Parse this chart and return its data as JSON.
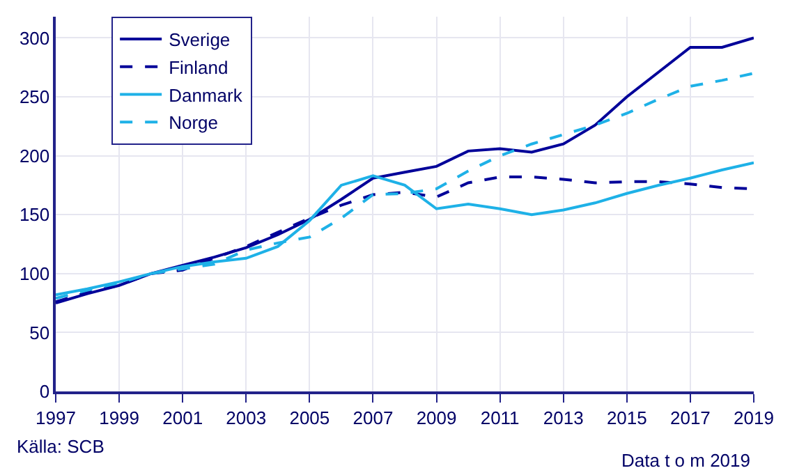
{
  "chart_data": {
    "type": "line",
    "x": [
      1997,
      1998,
      1999,
      2000,
      2001,
      2002,
      2003,
      2004,
      2005,
      2006,
      2007,
      2008,
      2009,
      2010,
      2011,
      2012,
      2013,
      2014,
      2015,
      2016,
      2017,
      2018,
      2019
    ],
    "series": [
      {
        "name": "Sverige",
        "color": "#000099",
        "line_style": "solid",
        "values": [
          75,
          83,
          90,
          100,
          107,
          114,
          122,
          133,
          146,
          163,
          181,
          186,
          191,
          204,
          206,
          203,
          210,
          226,
          250,
          271,
          292,
          292,
          300
        ]
      },
      {
        "name": "Finland",
        "color": "#000099",
        "line_style": "dashed",
        "values": [
          76,
          84,
          90,
          100,
          103,
          113,
          123,
          135,
          147,
          158,
          167,
          169,
          165,
          177,
          182,
          182,
          180,
          177,
          178,
          178,
          176,
          173,
          172
        ]
      },
      {
        "name": "Danmark",
        "color": "#1eb1e7",
        "line_style": "solid",
        "values": [
          82,
          87,
          93,
          100,
          106,
          110,
          113,
          123,
          145,
          175,
          183,
          175,
          155,
          159,
          155,
          150,
          154,
          160,
          168,
          175,
          181,
          188,
          194
        ]
      },
      {
        "name": "Norge",
        "color": "#1eb1e7",
        "line_style": "dashed",
        "values": [
          79,
          86,
          92,
          100,
          104,
          108,
          120,
          126,
          131,
          147,
          167,
          168,
          172,
          187,
          200,
          210,
          218,
          226,
          236,
          248,
          259,
          264,
          270
        ]
      }
    ],
    "xlim": [
      1997,
      2019
    ],
    "xticks": [
      1997,
      1999,
      2001,
      2003,
      2005,
      2007,
      2009,
      2011,
      2013,
      2015,
      2017,
      2019
    ],
    "ylim": [
      0,
      318
    ],
    "yticks": [
      0,
      50,
      100,
      150,
      200,
      250,
      300
    ],
    "grid": true,
    "legend": "top left",
    "marker": "none",
    "annotations": [
      "Källa: SCB",
      "Data t o m 2019"
    ]
  }
}
